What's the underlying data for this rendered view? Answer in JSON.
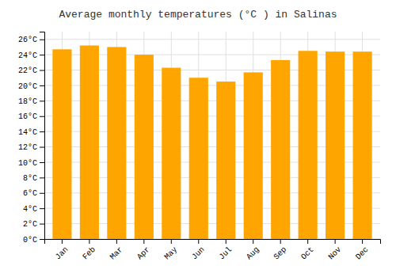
{
  "chart_data": {
    "type": "bar",
    "title": "Average monthly temperatures (°C ) in Salinas",
    "categories": [
      "Jan",
      "Feb",
      "Mar",
      "Apr",
      "May",
      "Jun",
      "Jul",
      "Aug",
      "Sep",
      "Oct",
      "Nov",
      "Dec"
    ],
    "values": [
      24.7,
      25.2,
      25.0,
      24.0,
      22.3,
      21.0,
      20.5,
      21.7,
      23.3,
      24.5,
      24.4,
      24.4
    ],
    "color": "#FFA500",
    "ylim": [
      0,
      27
    ],
    "yticks": [
      {
        "value": 0,
        "label": "0°C"
      },
      {
        "value": 2,
        "label": "2°C"
      },
      {
        "value": 4,
        "label": "4°C"
      },
      {
        "value": 6,
        "label": "6°C"
      },
      {
        "value": 8,
        "label": "8°C"
      },
      {
        "value": 10,
        "label": "10°C"
      },
      {
        "value": 12,
        "label": "12°C"
      },
      {
        "value": 14,
        "label": "14°C"
      },
      {
        "value": 16,
        "label": "16°C"
      },
      {
        "value": 18,
        "label": "18°C"
      },
      {
        "value": 20,
        "label": "20°C"
      },
      {
        "value": 22,
        "label": "22°C"
      },
      {
        "value": 24,
        "label": "24°C"
      },
      {
        "value": 26,
        "label": "26°C"
      }
    ],
    "grid": true
  }
}
